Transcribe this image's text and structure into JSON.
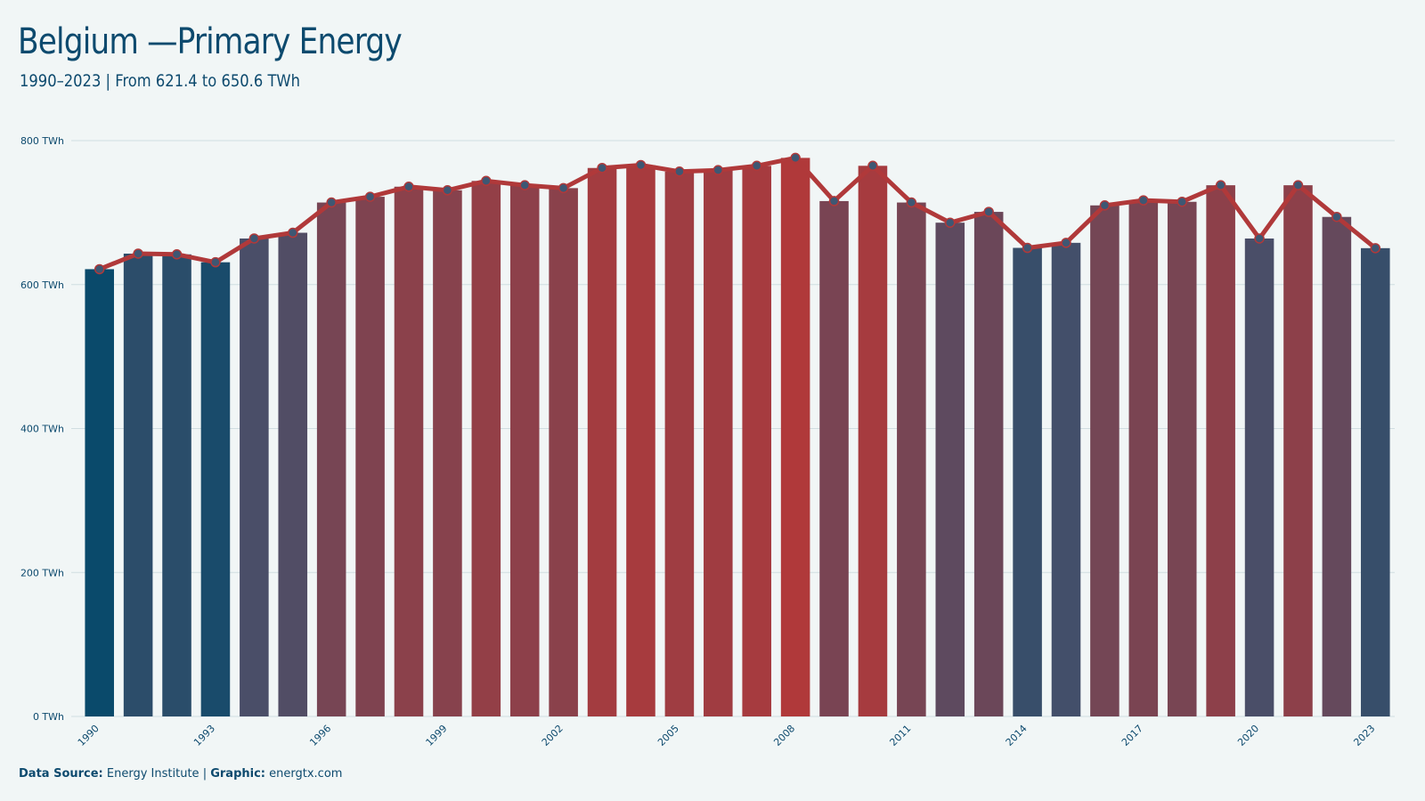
{
  "header": {
    "title": "Belgium —Primary Energy",
    "subtitle": "1990–2023 | From 621.4 to 650.6 TWh"
  },
  "footer": {
    "source_label": "Data Source:",
    "source_value": "Energy Institute",
    "separator": "|",
    "graphic_label": "Graphic:",
    "graphic_value": "energtx.com"
  },
  "chart_data": {
    "type": "bar",
    "categories": [
      "1990",
      "1991",
      "1992",
      "1993",
      "1994",
      "1995",
      "1996",
      "1997",
      "1998",
      "1999",
      "2000",
      "2001",
      "2002",
      "2003",
      "2004",
      "2005",
      "2006",
      "2007",
      "2008",
      "2009",
      "2010",
      "2011",
      "2012",
      "2013",
      "2014",
      "2015",
      "2016",
      "2017",
      "2018",
      "2019",
      "2020",
      "2021",
      "2022",
      "2023"
    ],
    "values": [
      621.4,
      643,
      642,
      631,
      664,
      672,
      714,
      722,
      736,
      731,
      744,
      738,
      734,
      762,
      766,
      757,
      759,
      765,
      776,
      716,
      765,
      714,
      686,
      701,
      651,
      658,
      710,
      717,
      715,
      738,
      664,
      738,
      694,
      650.6
    ],
    "line_overlay": true,
    "x_tick_labels": [
      "1990",
      "1993",
      "1996",
      "1999",
      "2002",
      "2005",
      "2008",
      "2011",
      "2014",
      "2017",
      "2020",
      "2023"
    ],
    "y_ticks": [
      0,
      200,
      400,
      600,
      800
    ],
    "y_tick_labels": [
      "0 TWh",
      "200 TWh",
      "400 TWh",
      "600 TWh",
      "800 TWh"
    ],
    "ylim": [
      0,
      800
    ],
    "unit": "TWh",
    "grid": "horizontal",
    "colors": {
      "low": "#0a4a6b",
      "mid": "#464f6a",
      "high": "#b0393a",
      "line": "#b0393a",
      "marker_fill": "#3e5773",
      "marker_stroke": "#b0393a",
      "gridline": "#d0dde1",
      "background": "#f1f6f6"
    }
  }
}
